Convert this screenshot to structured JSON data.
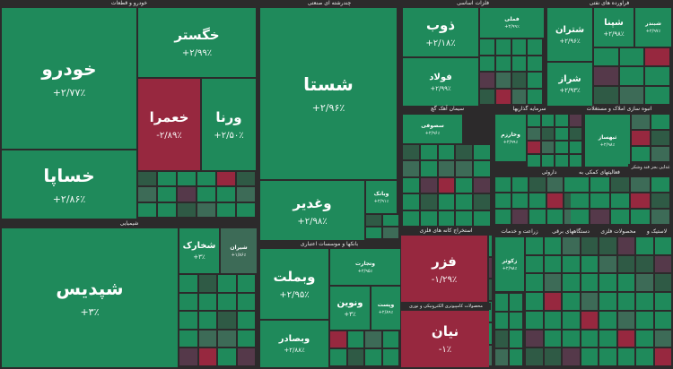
{
  "chart_data": {
    "type": "treemap",
    "title": "",
    "colors": {
      "up": "#1f8a5b",
      "flat": "#3d6b57",
      "down": "#97283f",
      "down_muted": "#55394a"
    },
    "sectors": [
      "خودرو و قطعات",
      "شیمیایی",
      "چندرشته ای صنعتی",
      "بانکها و موسسات اعتباری",
      "فلزات اساسی",
      "فراورده های نفتی",
      "سیمان آهک گچ",
      "سرمایه گذاریها",
      "انبوه سازی املاک و مستغلات",
      "استخراج کانه های فلزی",
      "محصولات کامپیوتری الکترونیکی و نوری",
      "داروئی",
      "فعالیتهای کمکی به",
      "غذایی بجز قند وشکر",
      "زراعت و خدمات",
      "دستگاههای برقی",
      "محصولات فلزی",
      "لاستیک و"
    ],
    "tiles": [
      {
        "symbol": "خودرو",
        "change": "+۲/۷۷٪",
        "sector": "خودرو و قطعات"
      },
      {
        "symbol": "خساپا",
        "change": "+۲/۸۶٪",
        "sector": "خودرو و قطعات"
      },
      {
        "symbol": "خگستر",
        "change": "+۲/۹۹٪",
        "sector": "خودرو و قطعات"
      },
      {
        "symbol": "خعمرا",
        "change": "-۲/۸۹٪",
        "sector": "خودرو و قطعات"
      },
      {
        "symbol": "ورنا",
        "change": "+۲/۵۰٪",
        "sector": "خودرو و قطعات"
      },
      {
        "symbol": "شپدیس",
        "change": "+۳٪",
        "sector": "شیمیایی"
      },
      {
        "symbol": "شخارک",
        "change": "+۳٪",
        "sector": "شیمیایی"
      },
      {
        "symbol": "شیران",
        "change": "+۱/۸۶٪",
        "sector": "شیمیایی"
      },
      {
        "symbol": "شستا",
        "change": "+۲/۹۶٪",
        "sector": "چندرشته ای صنعتی"
      },
      {
        "symbol": "وغدیر",
        "change": "+۲/۹۸٪",
        "sector": "چندرشته ای صنعتی"
      },
      {
        "symbol": "وبانک",
        "change": "+۲/۹۱٪",
        "sector": "چندرشته ای صنعتی"
      },
      {
        "symbol": "وبملت",
        "change": "+۲/۹۵٪",
        "sector": "بانکها و موسسات اعتباری"
      },
      {
        "symbol": "وتجارت",
        "change": "+۲/۹۵٪",
        "sector": "بانکها و موسسات اعتباری"
      },
      {
        "symbol": "ونوین",
        "change": "+۳٪",
        "sector": "بانکها و موسسات اعتباری"
      },
      {
        "symbol": "وپست",
        "change": "+۲/۸۹٪",
        "sector": "بانکها و موسسات اعتباری"
      },
      {
        "symbol": "وبصادر",
        "change": "+۲/۸۸٪",
        "sector": "بانکها و موسسات اعتباری"
      },
      {
        "symbol": "فزر",
        "change": "-۱/۲۹٪",
        "sector": "استخراج کانه های فلزی"
      },
      {
        "symbol": "نیان",
        "change": "-۱٪",
        "sector": "محصولات کامپیوتری الکترونیکی و نوری"
      },
      {
        "symbol": "ذوب",
        "change": "+۲/۱۸٪",
        "sector": "فلزات اساسی"
      },
      {
        "symbol": "فولاد",
        "change": "+۲/۹۹٪",
        "sector": "فلزات اساسی"
      },
      {
        "symbol": "فملی",
        "change": "+۲/۹۹٪",
        "sector": "فلزات اساسی"
      },
      {
        "symbol": "شتران",
        "change": "+۲/۹۶٪",
        "sector": "فراورده های نفتی"
      },
      {
        "symbol": "شراز",
        "change": "+۲/۹۳٪",
        "sector": "فراورده های نفتی"
      },
      {
        "symbol": "شپنا",
        "change": "+۲/۹۸٪",
        "sector": "فراورده های نفتی"
      },
      {
        "symbol": "شبندر",
        "change": "+۲/۹۷٪",
        "sector": "فراورده های نفتی"
      },
      {
        "symbol": "سصوفی",
        "change": "+۲/۹۶٪",
        "sector": "سیمان آهک گچ"
      },
      {
        "symbol": "ثبهساز",
        "change": "+۲/۹۸٪",
        "sector": "انبوه سازی املاک و مستغلات"
      },
      {
        "symbol": "وخارزم",
        "change": "+۲/۹۹٪",
        "sector": "سرمایه گذاریها"
      },
      {
        "symbol": "زکوثر",
        "change": "+۲/۹۸٪",
        "sector": "زراعت و خدمات"
      }
    ]
  }
}
